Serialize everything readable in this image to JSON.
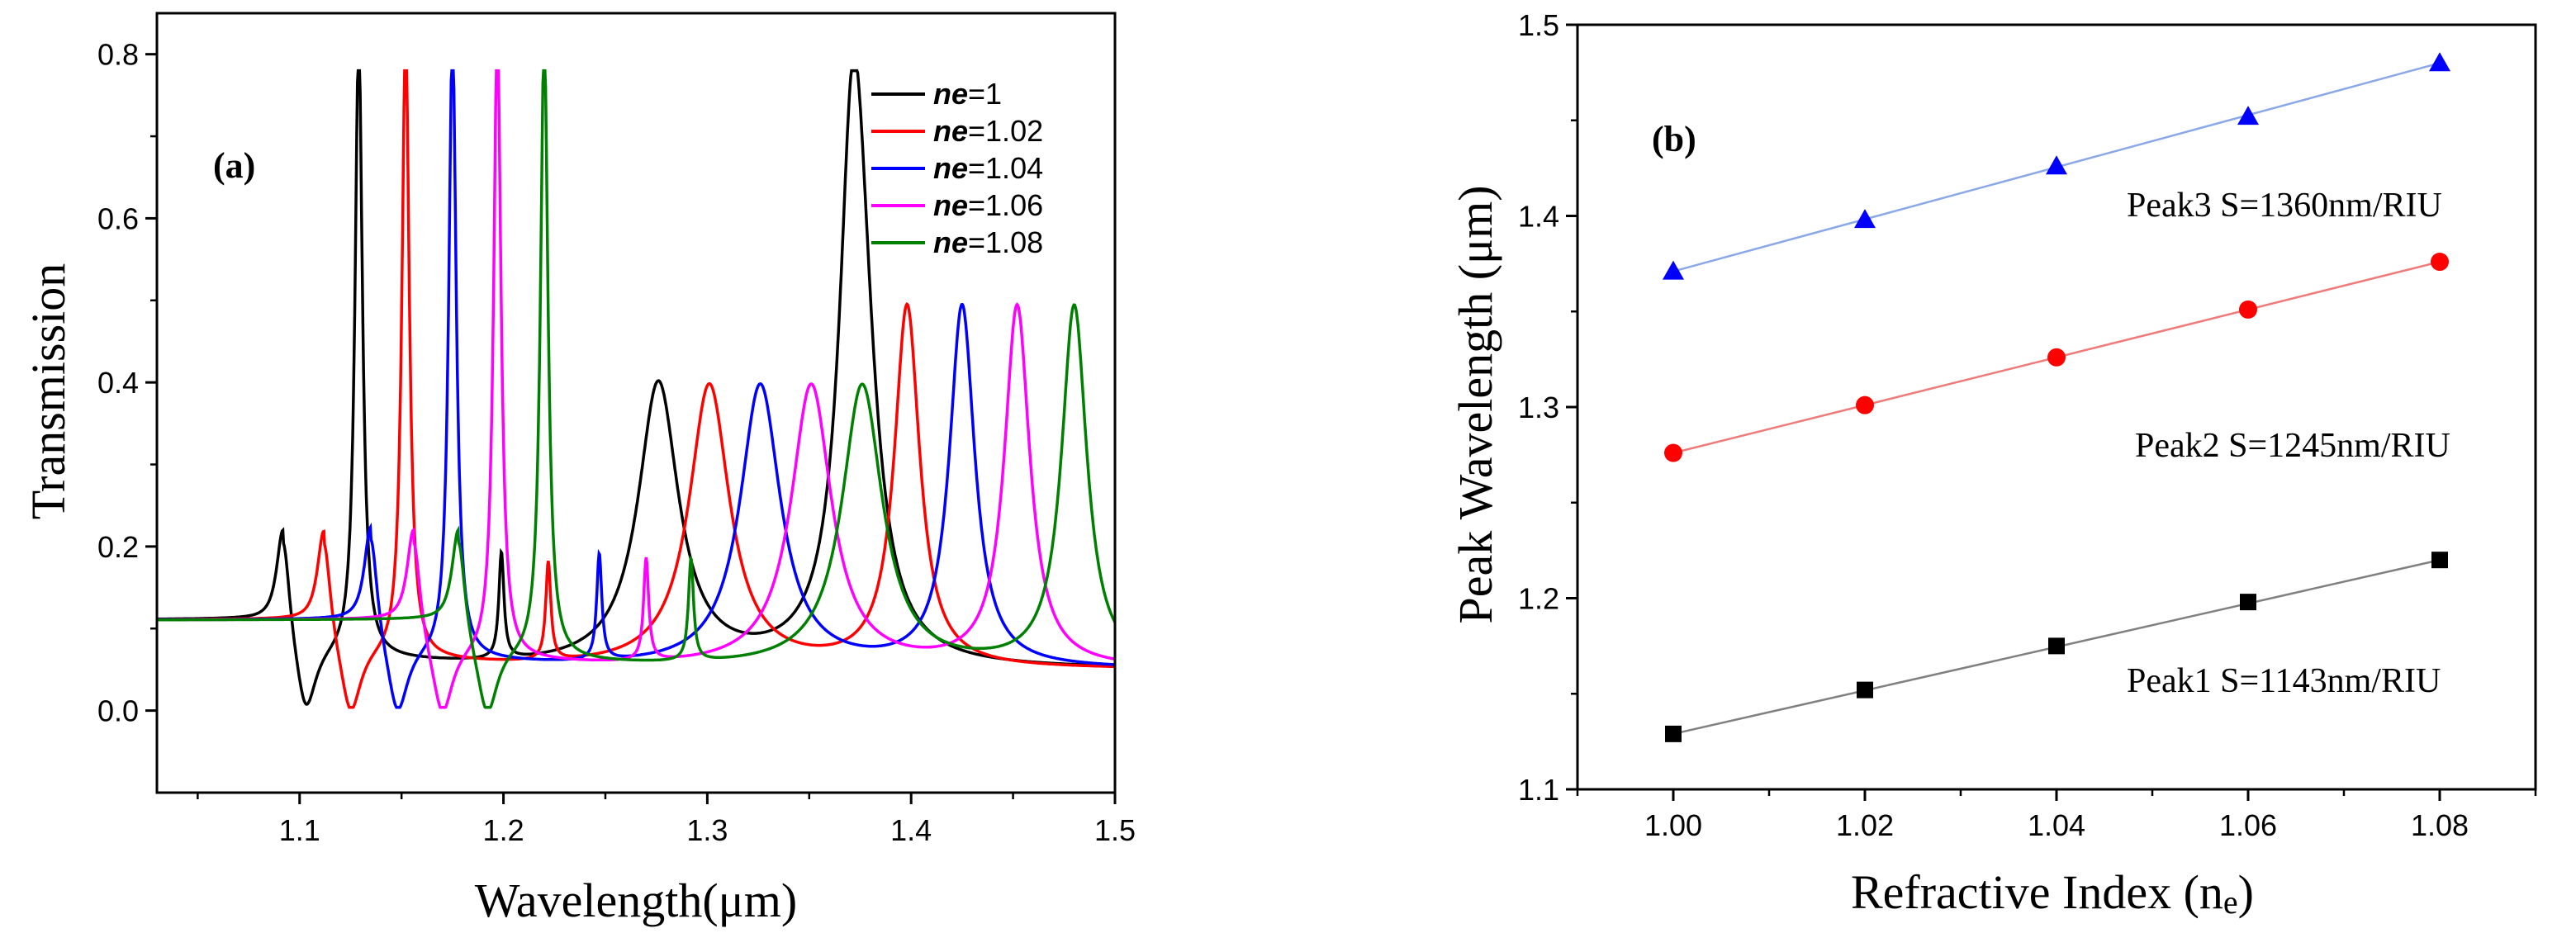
{
  "chart_data": [
    {
      "type": "line",
      "panel_label": "(a)",
      "xlabel": "Wavelength(μm)",
      "ylabel": "Transmission",
      "xlim": [
        1.03,
        1.5
      ],
      "ylim": [
        -0.1,
        0.85
      ],
      "xticks": [
        "1.1",
        "1.2",
        "1.3",
        "1.4",
        "1.5"
      ],
      "yticks": [
        "0.0",
        "0.2",
        "0.4",
        "0.6",
        "0.8"
      ],
      "legend_position": "top-right",
      "legend_prefix": "ne",
      "series": [
        {
          "name": "ne=1",
          "value_label": "=1",
          "color": "#000000",
          "peaks": [
            [
              1.092,
              0.14,
              0.004
            ],
            [
              1.129,
              0.76,
              0.0022
            ],
            [
              1.199,
              0.13,
              0.0015
            ],
            [
              1.276,
              0.345,
              0.012
            ],
            [
              1.371,
              0.44,
              0.0075
            ],
            [
              1.375,
              0.34,
              0.01
            ]
          ],
          "dips": [
            [
              1.103,
              0.09,
              0.006
            ]
          ]
        },
        {
          "name": "ne=1.02",
          "value_label": "=1.02",
          "color": "#ff0000",
          "peaks": [
            [
              1.112,
              0.135,
              0.004
            ],
            [
              1.152,
              0.76,
              0.0022
            ],
            [
              1.222,
              0.12,
              0.0015
            ],
            [
              1.301,
              0.345,
              0.012
            ],
            [
              1.398,
              0.44,
              0.0075
            ]
          ],
          "dips": [
            [
              1.125,
              0.09,
              0.006
            ]
          ]
        },
        {
          "name": "ne=1.04",
          "value_label": "=1.04",
          "color": "#0000ff",
          "peaks": [
            [
              1.135,
              0.14,
              0.004
            ],
            [
              1.175,
              0.765,
              0.0022
            ],
            [
              1.247,
              0.13,
              0.0015
            ],
            [
              1.326,
              0.345,
              0.012
            ],
            [
              1.425,
              0.44,
              0.0075
            ]
          ],
          "dips": [
            [
              1.148,
              0.09,
              0.006
            ]
          ]
        },
        {
          "name": "ne=1.06",
          "value_label": "=1.06",
          "color": "#ff00ff",
          "peaks": [
            [
              1.156,
              0.135,
              0.004
            ],
            [
              1.197,
              0.765,
              0.0022
            ],
            [
              1.27,
              0.125,
              0.0015
            ],
            [
              1.351,
              0.345,
              0.012
            ],
            [
              1.452,
              0.44,
              0.0075
            ]
          ],
          "dips": [
            [
              1.17,
              0.09,
              0.006
            ]
          ]
        },
        {
          "name": "ne=1.08",
          "value_label": "=1.08",
          "color": "#008000",
          "peaks": [
            [
              1.178,
              0.135,
              0.004
            ],
            [
              1.22,
              0.765,
              0.0022
            ],
            [
              1.292,
              0.125,
              0.0015
            ],
            [
              1.376,
              0.345,
              0.012
            ],
            [
              1.48,
              0.44,
              0.0075
            ]
          ],
          "dips": [
            [
              1.192,
              0.09,
              0.006
            ]
          ]
        }
      ]
    },
    {
      "type": "scatter",
      "panel_label": "(b)",
      "xlabel": "Refractive Index (ne)",
      "ylabel": "Peak Wavelength (μm)",
      "xlim": [
        0.99,
        1.09
      ],
      "ylim": [
        1.1,
        1.5
      ],
      "xticks": [
        "1.00",
        "1.02",
        "1.04",
        "1.06",
        "1.08"
      ],
      "yticks": [
        "1.1",
        "1.2",
        "1.3",
        "1.4",
        "1.5"
      ],
      "x": [
        1.0,
        1.02,
        1.04,
        1.06,
        1.08
      ],
      "series": [
        {
          "name": "Peak3",
          "annotation": "Peak3 S=1360nm/RIU",
          "marker": "triangle",
          "color": "#0000ff",
          "line_color": "#8aa8e8",
          "values": [
            1.371,
            1.398,
            1.426,
            1.452,
            1.48
          ]
        },
        {
          "name": "Peak2",
          "annotation": "Peak2 S=1245nm/RIU",
          "marker": "circle",
          "color": "#ff0000",
          "line_color": "#f07a7a",
          "values": [
            1.276,
            1.301,
            1.326,
            1.351,
            1.376
          ]
        },
        {
          "name": "Peak1",
          "annotation": "Peak1 S=1143nm/RIU",
          "marker": "square",
          "color": "#000000",
          "line_color": "#808080",
          "values": [
            1.129,
            1.152,
            1.175,
            1.198,
            1.22
          ]
        }
      ]
    }
  ]
}
